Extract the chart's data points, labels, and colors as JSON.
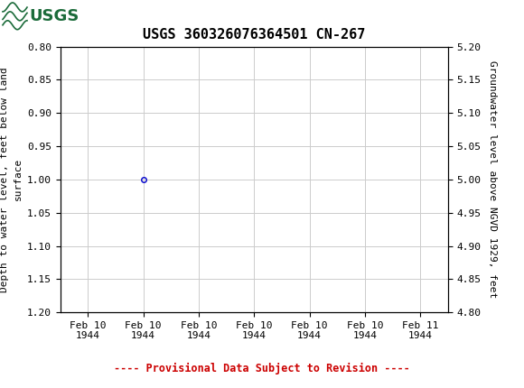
{
  "title": "USGS 360326076364501 CN-267",
  "header_bg_color": "#1b6b3a",
  "ylabel_left": "Depth to water level, feet below land\nsurface",
  "ylabel_right": "Groundwater level above NGVD 1929, feet",
  "xlabel_ticks": [
    "Feb 10\n1944",
    "Feb 10\n1944",
    "Feb 10\n1944",
    "Feb 10\n1944",
    "Feb 10\n1944",
    "Feb 10\n1944",
    "Feb 11\n1944"
  ],
  "ylim_left": [
    1.2,
    0.8
  ],
  "ylim_right": [
    4.8,
    5.2
  ],
  "yticks_left": [
    0.8,
    0.85,
    0.9,
    0.95,
    1.0,
    1.05,
    1.1,
    1.15,
    1.2
  ],
  "yticks_right": [
    5.2,
    5.15,
    5.1,
    5.05,
    5.0,
    4.95,
    4.9,
    4.85,
    4.8
  ],
  "data_x": [
    1
  ],
  "data_y": [
    1.0
  ],
  "point_color": "#0000cc",
  "point_marker": "o",
  "point_size": 4,
  "grid_color": "#cccccc",
  "provisional_text": "---- Provisional Data Subject to Revision ----",
  "provisional_color": "#cc0000",
  "bg_color": "#ffffff",
  "font_family": "monospace",
  "title_fontsize": 11,
  "axis_fontsize": 8,
  "tick_fontsize": 8
}
